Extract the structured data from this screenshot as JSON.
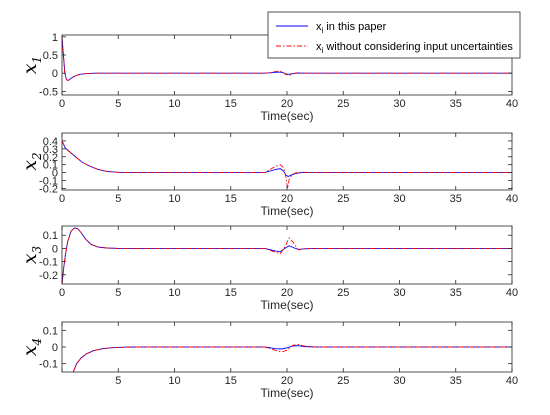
{
  "chart_data": {
    "type": "line",
    "xlabel": "Time(sec)",
    "xlim": [
      0,
      40
    ],
    "xticks": [
      0,
      5,
      10,
      15,
      20,
      25,
      30,
      35,
      40
    ],
    "grid": false,
    "legend": {
      "placement": "top-right",
      "entries": [
        {
          "main": "x",
          "sub": "i",
          "rest": " in this paper",
          "color": "#0000ff",
          "style": "solid"
        },
        {
          "main": "x",
          "sub": "i",
          "rest": " without considering input uncertainties",
          "color": "#ff0000",
          "style": "dash-dot"
        }
      ]
    },
    "subplots": [
      {
        "ylabel_main": "x",
        "ylabel_sub": "1",
        "ylim": [
          -0.6,
          1.05
        ],
        "yticks": [
          -0.5,
          0,
          0.5,
          1
        ],
        "ytick_labels": [
          "-0.5",
          "0",
          "0.5",
          "1"
        ],
        "xtick_labels": [
          "0",
          "5",
          "10",
          "15",
          "20",
          "25",
          "30",
          "35",
          "40"
        ],
        "series": [
          {
            "color": "#0000ff",
            "style": "solid",
            "x": [
              0,
              0.1,
              0.25,
              0.4,
              0.55,
              0.7,
              0.9,
              1.2,
              1.6,
              2.2,
              3.0,
              4.0,
              5.5,
              18.0,
              18.5,
              18.9,
              19.3,
              19.6,
              19.9,
              20.2,
              20.5,
              20.9,
              21.5,
              22.5,
              40
            ],
            "y": [
              1.0,
              0.6,
              0.0,
              -0.18,
              -0.2,
              -0.17,
              -0.12,
              -0.07,
              -0.03,
              -0.01,
              0.0,
              0.0,
              0.0,
              0.0,
              0.01,
              0.02,
              0.03,
              0.02,
              -0.02,
              -0.03,
              -0.01,
              0.005,
              0.0,
              0.0,
              0.0
            ]
          },
          {
            "color": "#ff0000",
            "style": "dash-dot",
            "x": [
              0,
              0.1,
              0.25,
              0.4,
              0.55,
              0.7,
              0.9,
              1.2,
              1.6,
              2.2,
              3.0,
              4.0,
              5.5,
              18.0,
              18.5,
              18.9,
              19.3,
              19.6,
              19.9,
              20.2,
              20.5,
              20.9,
              21.5,
              22.5,
              40
            ],
            "y": [
              1.0,
              0.6,
              0.0,
              -0.18,
              -0.2,
              -0.17,
              -0.12,
              -0.07,
              -0.03,
              -0.01,
              0.0,
              0.0,
              0.0,
              0.0,
              0.01,
              0.04,
              0.06,
              0.04,
              -0.04,
              -0.06,
              -0.02,
              0.01,
              0.0,
              0.0,
              0.0
            ]
          }
        ]
      },
      {
        "ylabel_main": "x",
        "ylabel_sub": "2",
        "ylim": [
          -0.22,
          0.5
        ],
        "yticks": [
          -0.2,
          -0.1,
          0,
          0.1,
          0.2,
          0.3,
          0.4
        ],
        "ytick_labels": [
          "-0.2",
          "-0.1",
          "0",
          "0.1",
          "0.2",
          "0.3",
          "0.4"
        ],
        "xtick_labels": [
          "0",
          "5",
          "10",
          "15",
          "20",
          "25",
          "30",
          "35",
          "40"
        ],
        "series": [
          {
            "color": "#0000ff",
            "style": "solid",
            "x": [
              0,
              0.3,
              0.7,
              1.2,
              1.8,
              2.5,
              3.2,
              4.0,
              4.8,
              5.5,
              6.5,
              18.0,
              18.5,
              19.0,
              19.4,
              19.7,
              19.9,
              20.1,
              20.4,
              20.8,
              21.3,
              22.0,
              40
            ],
            "y": [
              0.4,
              0.31,
              0.26,
              0.2,
              0.13,
              0.08,
              0.04,
              0.015,
              0.005,
              0.0,
              0.0,
              0.0,
              0.02,
              0.04,
              0.05,
              0.02,
              -0.03,
              -0.05,
              -0.03,
              -0.01,
              0.0,
              0.0,
              0.0
            ]
          },
          {
            "color": "#ff0000",
            "style": "dash-dot",
            "x": [
              0,
              0.3,
              0.7,
              1.2,
              1.8,
              2.5,
              3.2,
              4.0,
              4.8,
              5.5,
              6.5,
              18.0,
              18.5,
              19.0,
              19.4,
              19.7,
              19.9,
              20.05,
              20.2,
              20.5,
              20.9,
              21.4,
              22.0,
              40
            ],
            "y": [
              0.4,
              0.31,
              0.26,
              0.2,
              0.13,
              0.08,
              0.04,
              0.015,
              0.005,
              0.0,
              0.0,
              0.0,
              0.04,
              0.08,
              0.1,
              0.06,
              -0.05,
              -0.2,
              -0.08,
              -0.02,
              0.0,
              0.005,
              0.0,
              0.0
            ]
          }
        ]
      },
      {
        "ylabel_main": "x",
        "ylabel_sub": "3",
        "ylim": [
          -0.27,
          0.17
        ],
        "yticks": [
          -0.2,
          -0.1,
          0,
          0.1
        ],
        "ytick_labels": [
          "-0.2",
          "-0.1",
          "0",
          "0.1"
        ],
        "xtick_labels": [
          "0",
          "5",
          "10",
          "15",
          "20",
          "25",
          "30",
          "35",
          "40"
        ],
        "series": [
          {
            "color": "#0000ff",
            "style": "solid",
            "x": [
              0,
              0.15,
              0.3,
              0.5,
              0.8,
              1.1,
              1.4,
              1.7,
              2.1,
              2.6,
              3.2,
              4.0,
              5.0,
              6.0,
              18.0,
              18.5,
              19.0,
              19.4,
              19.8,
              20.2,
              20.6,
              21.0,
              21.5,
              22.2,
              40
            ],
            "y": [
              -0.27,
              -0.15,
              -0.05,
              0.05,
              0.13,
              0.155,
              0.15,
              0.12,
              0.07,
              0.03,
              0.01,
              0.003,
              0.0,
              0.0,
              0.0,
              -0.01,
              -0.02,
              -0.025,
              0.0,
              0.02,
              0.005,
              -0.008,
              -0.003,
              0.0,
              0.0
            ]
          },
          {
            "color": "#ff0000",
            "style": "dash-dot",
            "x": [
              0,
              0.15,
              0.3,
              0.5,
              0.8,
              1.1,
              1.4,
              1.7,
              2.1,
              2.6,
              3.2,
              4.0,
              5.0,
              6.0,
              18.0,
              18.5,
              19.0,
              19.4,
              19.8,
              20.2,
              20.6,
              21.0,
              21.5,
              22.2,
              40
            ],
            "y": [
              -0.27,
              -0.15,
              -0.05,
              0.05,
              0.13,
              0.155,
              0.15,
              0.12,
              0.07,
              0.03,
              0.01,
              0.003,
              0.0,
              0.0,
              0.0,
              -0.015,
              -0.03,
              -0.04,
              0.01,
              0.08,
              0.04,
              -0.01,
              -0.005,
              0.0,
              0.0
            ]
          }
        ]
      },
      {
        "ylabel_main": "x",
        "ylabel_sub": "4",
        "ylim": [
          -0.15,
          0.15
        ],
        "yticks": [
          -0.1,
          0,
          0.1
        ],
        "ytick_labels": [
          "-0.1",
          "0",
          "0.1"
        ],
        "xtick_labels": [
          "",
          "5",
          "10",
          "15",
          "20",
          "25",
          "30",
          "35",
          "40"
        ],
        "series": [
          {
            "color": "#0000ff",
            "style": "solid",
            "x": [
              1.0,
              1.3,
              1.7,
              2.2,
              2.8,
              3.6,
              4.5,
              5.5,
              6.5,
              7.5,
              18.0,
              18.5,
              19.0,
              19.5,
              20.0,
              20.5,
              21.0,
              21.5,
              22.5,
              40
            ],
            "y": [
              -0.15,
              -0.1,
              -0.065,
              -0.04,
              -0.022,
              -0.01,
              -0.004,
              -0.001,
              0.0,
              0.0,
              0.0,
              -0.005,
              -0.01,
              -0.012,
              -0.005,
              0.006,
              0.008,
              0.003,
              0.0,
              0.0
            ]
          },
          {
            "color": "#ff0000",
            "style": "dash-dot",
            "x": [
              1.0,
              1.3,
              1.7,
              2.2,
              2.8,
              3.6,
              4.5,
              5.5,
              6.5,
              7.5,
              18.0,
              18.5,
              19.0,
              19.5,
              20.0,
              20.5,
              21.0,
              21.5,
              22.5,
              40
            ],
            "y": [
              -0.15,
              -0.1,
              -0.065,
              -0.04,
              -0.022,
              -0.01,
              -0.004,
              -0.001,
              0.0,
              0.0,
              0.0,
              -0.01,
              -0.02,
              -0.03,
              -0.02,
              0.01,
              0.015,
              0.006,
              0.0,
              0.0
            ]
          }
        ]
      }
    ]
  }
}
